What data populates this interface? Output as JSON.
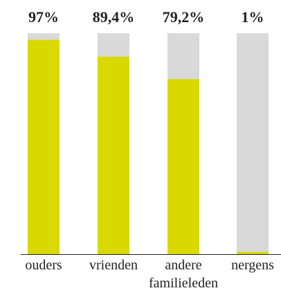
{
  "chart_data": {
    "type": "bar",
    "categories": [
      "ouders",
      "vrienden",
      "andere familieleden",
      "nergens"
    ],
    "values": [
      97,
      89.4,
      79.2,
      1
    ],
    "value_labels": [
      "97%",
      "89,4%",
      "79,2%",
      "1%"
    ],
    "color": "#d9d900",
    "track_color": "#d9d9d9",
    "ylim": [
      0,
      100
    ]
  }
}
